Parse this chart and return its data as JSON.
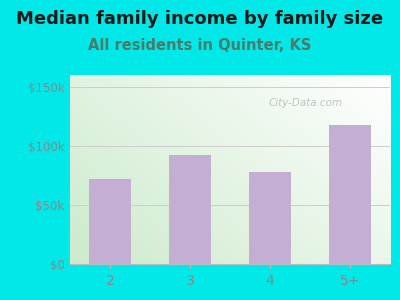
{
  "categories": [
    "2",
    "3",
    "4",
    "5+"
  ],
  "values": [
    72000,
    92000,
    78000,
    118000
  ],
  "bar_color": "#c4aed4",
  "title": "Median family income by family size",
  "subtitle": "All residents in Quinter, KS",
  "title_fontsize": 13.0,
  "subtitle_fontsize": 10.5,
  "title_color": "#1a1a1a",
  "subtitle_color": "#4a7a6a",
  "background_color": "#00e8e8",
  "ylim": [
    0,
    160000
  ],
  "yticks": [
    0,
    50000,
    100000,
    150000
  ],
  "ytick_labels": [
    "$0",
    "$50k",
    "$100k",
    "$150k"
  ],
  "tick_color": "#888888",
  "watermark": "City-Data.com"
}
